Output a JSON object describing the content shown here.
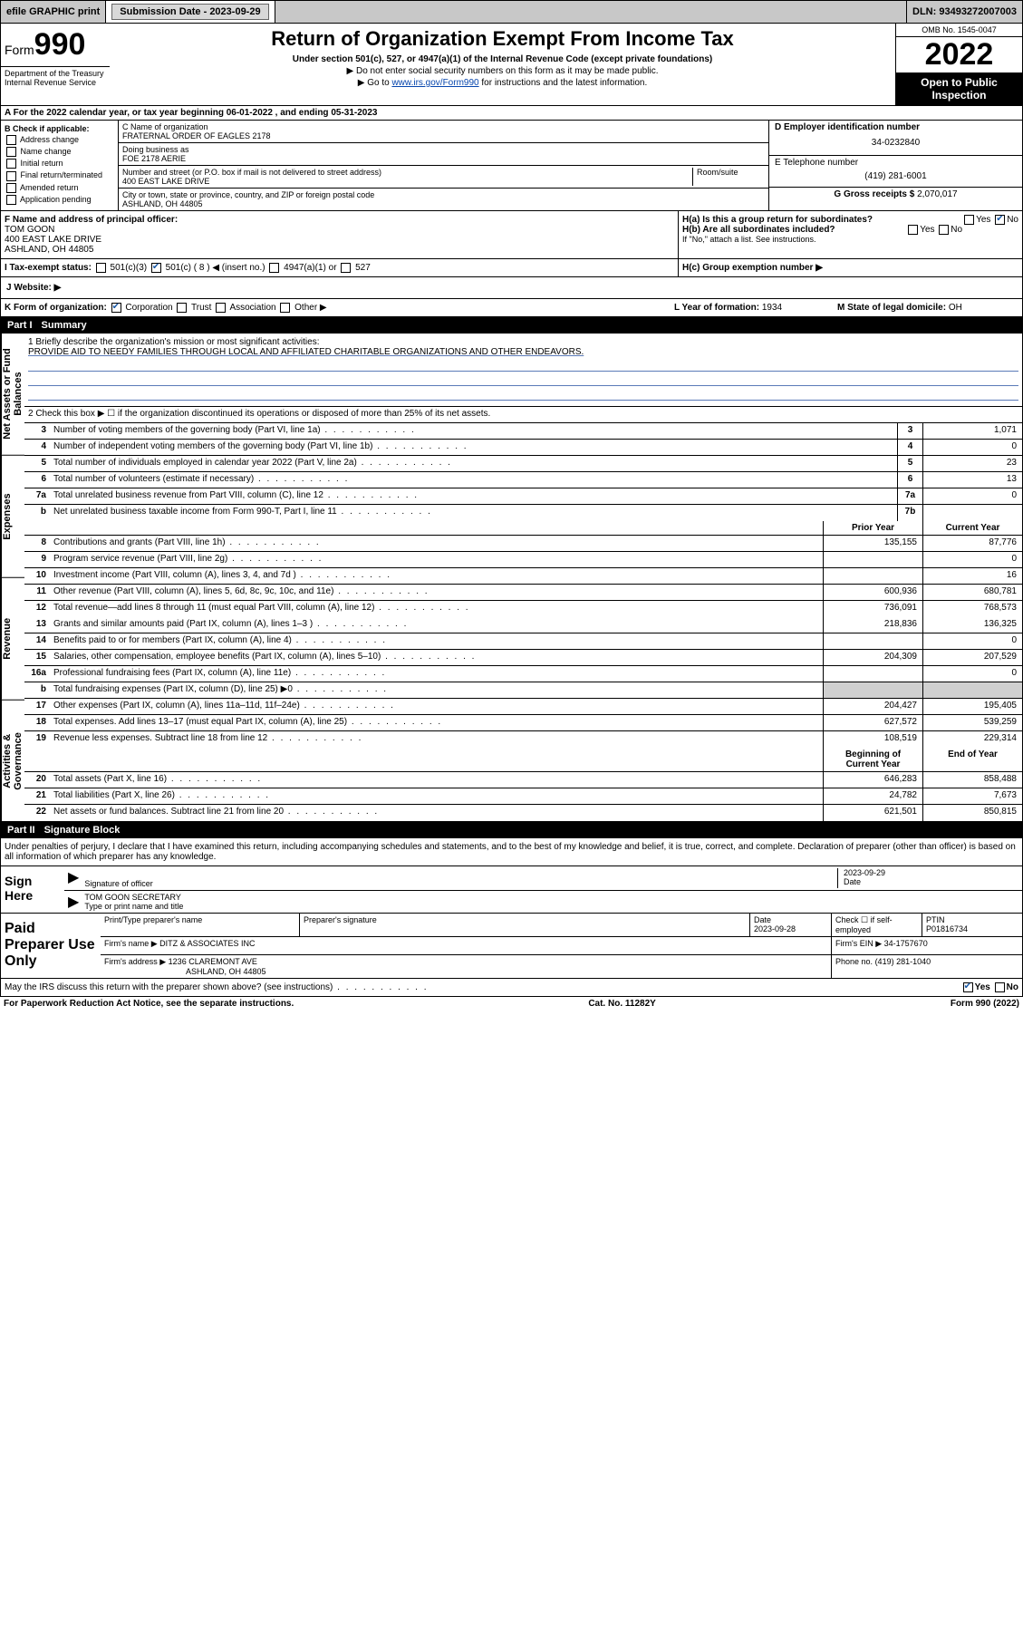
{
  "topbar": {
    "efile": "efile GRAPHIC print",
    "submission_label": "Submission Date - 2023-09-29",
    "dln_label": "DLN: 93493272007003"
  },
  "header": {
    "form_word": "Form",
    "form_number": "990",
    "dept": "Department of the Treasury\nInternal Revenue Service",
    "title": "Return of Organization Exempt From Income Tax",
    "subtitle": "Under section 501(c), 527, or 4947(a)(1) of the Internal Revenue Code (except private foundations)",
    "note1": "▶ Do not enter social security numbers on this form as it may be made public.",
    "note2_pre": "▶ Go to ",
    "note2_link": "www.irs.gov/Form990",
    "note2_post": " for instructions and the latest information.",
    "omb": "OMB No. 1545-0047",
    "year": "2022",
    "inspection": "Open to Public Inspection"
  },
  "row_a": "A For the 2022 calendar year, or tax year beginning 06-01-2022   , and ending 05-31-2023",
  "col_b": {
    "label": "B Check if applicable:",
    "items": [
      "Address change",
      "Name change",
      "Initial return",
      "Final return/terminated",
      "Amended return",
      "Application pending"
    ]
  },
  "col_c": {
    "name_label": "C Name of organization",
    "name": "FRATERNAL ORDER OF EAGLES 2178",
    "dba_label": "Doing business as",
    "dba": "FOE 2178 AERIE",
    "street_label": "Number and street (or P.O. box if mail is not delivered to street address)",
    "room_label": "Room/suite",
    "street": "400 EAST LAKE DRIVE",
    "city_label": "City or town, state or province, country, and ZIP or foreign postal code",
    "city": "ASHLAND, OH  44805"
  },
  "col_d": {
    "d_label": "D Employer identification number",
    "d_val": "34-0232840",
    "e_label": "E Telephone number",
    "e_val": "(419) 281-6001",
    "g_label": "G Gross receipts $",
    "g_val": "2,070,017"
  },
  "fh": {
    "f_label": "F Name and address of principal officer:",
    "f_name": "TOM GOON",
    "f_street": "400 EAST LAKE DRIVE",
    "f_city": "ASHLAND, OH  44805",
    "ha": "H(a)  Is this a group return for subordinates?",
    "hb": "H(b)  Are all subordinates included?",
    "hb_note": "If \"No,\" attach a list. See instructions.",
    "hc": "H(c)  Group exemption number ▶",
    "yes": "Yes",
    "no": "No"
  },
  "i": {
    "label": "I  Tax-exempt status:",
    "opt1": "501(c)(3)",
    "opt2": "501(c) ( 8 ) ◀ (insert no.)",
    "opt3": "4947(a)(1) or",
    "opt4": "527"
  },
  "j_label": "J  Website: ▶",
  "k": {
    "label": "K Form of organization:",
    "opts": [
      "Corporation",
      "Trust",
      "Association",
      "Other ▶"
    ]
  },
  "l": {
    "label": "L Year of formation:",
    "val": "1934"
  },
  "m": {
    "label": "M State of legal domicile:",
    "val": "OH"
  },
  "part1": {
    "label": "Part I",
    "title": "Summary"
  },
  "mission": {
    "label": "1  Briefly describe the organization's mission or most significant activities:",
    "text": "PROVIDE AID TO NEEDY FAMILIES THROUGH LOCAL AND AFFILIATED CHARITABLE ORGANIZATIONS AND OTHER ENDEAVORS."
  },
  "line2": "2   Check this box ▶ ☐  if the organization discontinued its operations or disposed of more than 25% of its net assets.",
  "vtabs": {
    "gov": "Activities & Governance",
    "rev": "Revenue",
    "exp": "Expenses",
    "net": "Net Assets or Fund Balances"
  },
  "cols": {
    "prior": "Prior Year",
    "current": "Current Year",
    "beg": "Beginning of Current Year",
    "end": "End of Year"
  },
  "rows_gov": [
    {
      "n": "3",
      "d": "Number of voting members of the governing body (Part VI, line 1a)",
      "k": "3",
      "v": "1,071"
    },
    {
      "n": "4",
      "d": "Number of independent voting members of the governing body (Part VI, line 1b)",
      "k": "4",
      "v": "0"
    },
    {
      "n": "5",
      "d": "Total number of individuals employed in calendar year 2022 (Part V, line 2a)",
      "k": "5",
      "v": "23"
    },
    {
      "n": "6",
      "d": "Total number of volunteers (estimate if necessary)",
      "k": "6",
      "v": "13"
    },
    {
      "n": "7a",
      "d": "Total unrelated business revenue from Part VIII, column (C), line 12",
      "k": "7a",
      "v": "0"
    },
    {
      "n": "b",
      "d": "Net unrelated business taxable income from Form 990-T, Part I, line 11",
      "k": "7b",
      "v": ""
    }
  ],
  "rows_rev": [
    {
      "n": "8",
      "d": "Contributions and grants (Part VIII, line 1h)",
      "p": "135,155",
      "c": "87,776"
    },
    {
      "n": "9",
      "d": "Program service revenue (Part VIII, line 2g)",
      "p": "",
      "c": "0"
    },
    {
      "n": "10",
      "d": "Investment income (Part VIII, column (A), lines 3, 4, and 7d )",
      "p": "",
      "c": "16"
    },
    {
      "n": "11",
      "d": "Other revenue (Part VIII, column (A), lines 5, 6d, 8c, 9c, 10c, and 11e)",
      "p": "600,936",
      "c": "680,781"
    },
    {
      "n": "12",
      "d": "Total revenue—add lines 8 through 11 (must equal Part VIII, column (A), line 12)",
      "p": "736,091",
      "c": "768,573"
    }
  ],
  "rows_exp": [
    {
      "n": "13",
      "d": "Grants and similar amounts paid (Part IX, column (A), lines 1–3 )",
      "p": "218,836",
      "c": "136,325"
    },
    {
      "n": "14",
      "d": "Benefits paid to or for members (Part IX, column (A), line 4)",
      "p": "",
      "c": "0"
    },
    {
      "n": "15",
      "d": "Salaries, other compensation, employee benefits (Part IX, column (A), lines 5–10)",
      "p": "204,309",
      "c": "207,529"
    },
    {
      "n": "16a",
      "d": "Professional fundraising fees (Part IX, column (A), line 11e)",
      "p": "",
      "c": "0"
    },
    {
      "n": "b",
      "d": "Total fundraising expenses (Part IX, column (D), line 25) ▶0",
      "p": null,
      "c": null
    },
    {
      "n": "17",
      "d": "Other expenses (Part IX, column (A), lines 11a–11d, 11f–24e)",
      "p": "204,427",
      "c": "195,405"
    },
    {
      "n": "18",
      "d": "Total expenses. Add lines 13–17 (must equal Part IX, column (A), line 25)",
      "p": "627,572",
      "c": "539,259"
    },
    {
      "n": "19",
      "d": "Revenue less expenses. Subtract line 18 from line 12",
      "p": "108,519",
      "c": "229,314"
    }
  ],
  "rows_net": [
    {
      "n": "20",
      "d": "Total assets (Part X, line 16)",
      "p": "646,283",
      "c": "858,488"
    },
    {
      "n": "21",
      "d": "Total liabilities (Part X, line 26)",
      "p": "24,782",
      "c": "7,673"
    },
    {
      "n": "22",
      "d": "Net assets or fund balances. Subtract line 21 from line 20",
      "p": "621,501",
      "c": "850,815"
    }
  ],
  "part2": {
    "label": "Part II",
    "title": "Signature Block"
  },
  "declare": "Under penalties of perjury, I declare that I have examined this return, including accompanying schedules and statements, and to the best of my knowledge and belief, it is true, correct, and complete. Declaration of preparer (other than officer) is based on all information of which preparer has any knowledge.",
  "sign": {
    "label": "Sign Here",
    "sig_label": "Signature of officer",
    "date_label": "Date",
    "date": "2023-09-29",
    "name": "TOM GOON  SECRETARY",
    "name_label": "Type or print name and title"
  },
  "paid": {
    "label": "Paid Preparer Use Only",
    "h1": "Print/Type preparer's name",
    "h2": "Preparer's signature",
    "h3": "Date",
    "date": "2023-09-28",
    "h4": "Check ☐ if self-employed",
    "h5": "PTIN",
    "ptin": "P01816734",
    "firm_name_label": "Firm's name    ▶",
    "firm_name": "DITZ & ASSOCIATES INC",
    "firm_ein_label": "Firm's EIN ▶",
    "firm_ein": "34-1757670",
    "firm_addr_label": "Firm's address ▶",
    "firm_addr1": "1236 CLAREMONT AVE",
    "firm_addr2": "ASHLAND, OH  44805",
    "phone_label": "Phone no.",
    "phone": "(419) 281-1040"
  },
  "footer": {
    "discuss": "May the IRS discuss this return with the preparer shown above? (see instructions)",
    "yes": "Yes",
    "no": "No",
    "paperwork": "For Paperwork Reduction Act Notice, see the separate instructions.",
    "cat": "Cat. No. 11282Y",
    "form": "Form 990 (2022)"
  }
}
